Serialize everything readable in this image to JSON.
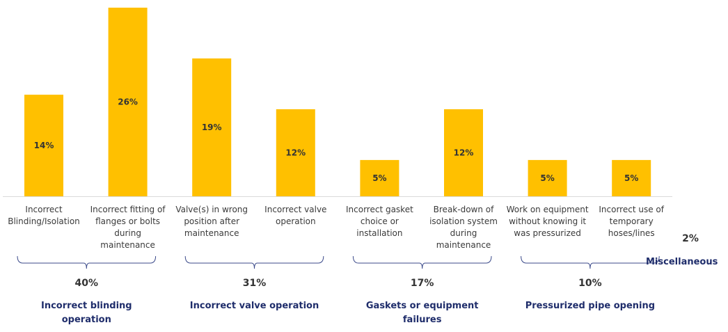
{
  "chart_data": {
    "type": "bar",
    "categories": [
      "Incorrect Blinding/Isolation",
      "Incorrect fitting of flanges or bolts during maintenance",
      "Valve(s) in wrong position after maintenance",
      "Incorrect valve operation",
      "Incorrect gasket choice or installation",
      "Break-down of isolation system during maintenance",
      "Work on equipment without knowing it was pressurized",
      "Incorrect use of temporary hoses/lines"
    ],
    "values": [
      14,
      26,
      19,
      12,
      5,
      12,
      5,
      5
    ],
    "value_labels": [
      "14%",
      "26%",
      "19%",
      "12%",
      "5%",
      "12%",
      "5%",
      "5%"
    ],
    "ylim": [
      0,
      26
    ],
    "grid": false,
    "bar_color": "#FFC000",
    "groups": [
      {
        "name": "Incorrect blinding operation",
        "percent": "40%",
        "from": 0,
        "to": 1
      },
      {
        "name": "Incorrect valve operation",
        "percent": "31%",
        "from": 2,
        "to": 3
      },
      {
        "name": "Gaskets or equipment failures",
        "percent": "17%",
        "from": 4,
        "to": 5
      },
      {
        "name": "Pressurized pipe opening",
        "percent": "10%",
        "from": 6,
        "to": 7
      }
    ],
    "misc": {
      "name": "Miscellaneous",
      "percent": "2%"
    }
  }
}
